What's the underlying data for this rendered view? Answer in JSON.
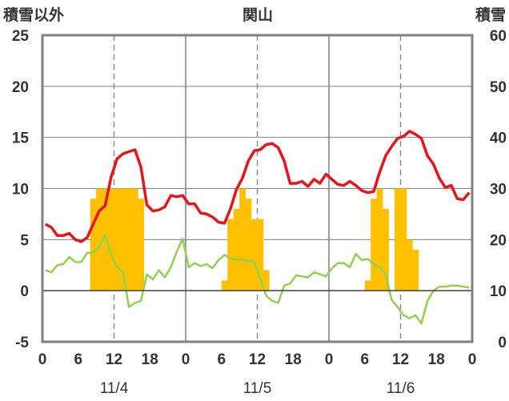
{
  "chart_data": {
    "type": "bar+line",
    "title": "関山",
    "left_axis_label": "積雪以外",
    "right_axis_label": "積雪",
    "left_ylim": [
      -5,
      25
    ],
    "left_ticks": [
      "25",
      "20",
      "15",
      "10",
      "5",
      "0",
      "-5"
    ],
    "right_ylim": [
      0,
      60
    ],
    "right_ticks": [
      "60",
      "50",
      "40",
      "30",
      "20",
      "10",
      "0"
    ],
    "x_hour_ticks": [
      "0",
      "6",
      "12",
      "18",
      "0",
      "6",
      "12",
      "18",
      "0",
      "6",
      "12",
      "18",
      "0"
    ],
    "x_day_labels": [
      "11/4",
      "11/5",
      "11/6"
    ],
    "grid": true,
    "colors": {
      "bars": "#FFC000",
      "temp_line": "#E8141C",
      "green_line": "#92D050",
      "purple_line": "#7030A0",
      "axis": "#808080",
      "grid": "#808080"
    },
    "series": [
      {
        "kind": "line",
        "axis": "left",
        "color": "#E8141C",
        "values": [
          6.5,
          6.2,
          5.4,
          5.4,
          5.6,
          5.0,
          4.8,
          5.2,
          6.5,
          7.8,
          8.3,
          11.1,
          12.9,
          13.4,
          13.6,
          13.8,
          12.1,
          8.4,
          7.8,
          7.9,
          8.2,
          9.3,
          9.2,
          9.3,
          8.5,
          8.5,
          7.6,
          7.5,
          7.2,
          6.7,
          6.6,
          8.0,
          9.9,
          11.0,
          12.7,
          13.7,
          13.8,
          14.3,
          14.4,
          14.0,
          12.7,
          10.5,
          10.5,
          10.7,
          10.2,
          10.9,
          10.5,
          11.4,
          10.9,
          10.4,
          10.3,
          10.7,
          10.3,
          9.8,
          9.6,
          9.7,
          11.6,
          13.2,
          14.1,
          14.9,
          15.1,
          15.6,
          15.3,
          14.9,
          13.2,
          12.4,
          11.0,
          10.1,
          10.3,
          9.0,
          8.9,
          9.6
        ]
      },
      {
        "kind": "line",
        "axis": "left",
        "color": "#92D050",
        "values": [
          2.0,
          1.8,
          2.5,
          2.6,
          3.3,
          2.8,
          2.8,
          3.7,
          3.7,
          4.3,
          5.5,
          3.5,
          2.3,
          1.8,
          -1.6,
          -1.2,
          -1.0,
          1.6,
          1.1,
          2.0,
          1.3,
          2.3,
          3.8,
          5.1,
          2.3,
          2.7,
          2.4,
          2.6,
          2.2,
          3.0,
          3.5,
          3.2,
          3.0,
          3.0,
          2.9,
          2.8,
          1.2,
          -0.5,
          -1.0,
          -1.2,
          0.5,
          0.7,
          1.5,
          1.4,
          1.3,
          1.8,
          1.6,
          1.4,
          2.2,
          2.7,
          2.7,
          2.3,
          3.6,
          3.0,
          3.1,
          2.6,
          2.3,
          1.6,
          -0.9,
          -1.6,
          -2.4,
          -2.7,
          -2.4,
          -3.2,
          -1.0,
          0.0,
          0.4,
          0.4,
          0.5,
          0.5,
          0.4,
          0.3
        ]
      },
      {
        "kind": "line",
        "axis": "left",
        "color": "#7030A0",
        "values": [
          -5,
          -5
        ]
      },
      {
        "kind": "bar",
        "axis": "left",
        "color": "#FFC000",
        "values": [
          null,
          null,
          null,
          null,
          null,
          null,
          null,
          null,
          9,
          10,
          10,
          10,
          10,
          10,
          10,
          10,
          9,
          null,
          null,
          null,
          null,
          null,
          null,
          null,
          null,
          null,
          null,
          null,
          null,
          null,
          1,
          7,
          8,
          10,
          9,
          7,
          7,
          2,
          null,
          null,
          null,
          null,
          null,
          null,
          null,
          null,
          null,
          null,
          null,
          null,
          null,
          null,
          null,
          null,
          1,
          9,
          10,
          8,
          null,
          10,
          10,
          5,
          4,
          null,
          null,
          null,
          null,
          null,
          null,
          null,
          null,
          null
        ]
      }
    ]
  }
}
